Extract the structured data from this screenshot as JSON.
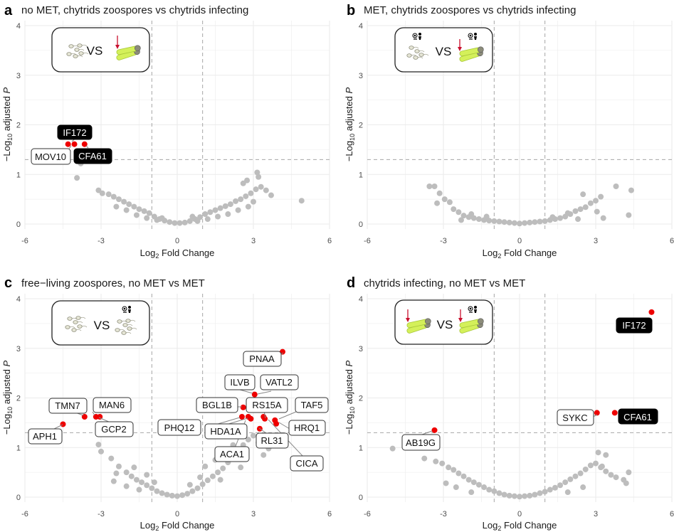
{
  "chart_data": [
    {
      "type": "scatter",
      "panel": "a",
      "title": "no MET, chytrids zoospores vs chytrids infecting",
      "xlabel": "Log2 Fold Change",
      "ylabel": "−Log10 adjusted P",
      "xlim": [
        -6,
        6
      ],
      "ylim": [
        0,
        4
      ],
      "xticks": [
        -6,
        -3,
        0,
        3,
        6
      ],
      "yticks": [
        0,
        1,
        2,
        3,
        4
      ],
      "grid": true,
      "thresholds": {
        "x": [
          -1,
          1
        ],
        "y": 1.3
      },
      "inset": {
        "vs_label": "VS",
        "left": "zoospores",
        "right": "infecting",
        "left_icon": false,
        "right_icon": false
      },
      "highlight_points": [
        {
          "x": -4.3,
          "y": 1.61
        },
        {
          "x": -4.05,
          "y": 1.61
        },
        {
          "x": -3.65,
          "y": 1.61
        }
      ],
      "ns_points": [
        [
          -3.8,
          1.22
        ],
        [
          -3.95,
          0.93
        ],
        [
          -3.1,
          0.68
        ],
        [
          -2.95,
          0.62
        ],
        [
          -2.7,
          0.6
        ],
        [
          -2.5,
          0.55
        ],
        [
          -2.3,
          0.5
        ],
        [
          -2.1,
          0.45
        ],
        [
          -1.9,
          0.4
        ],
        [
          -1.7,
          0.35
        ],
        [
          -1.5,
          0.3
        ],
        [
          -1.3,
          0.26
        ],
        [
          -1.1,
          0.22
        ],
        [
          -0.9,
          0.15
        ],
        [
          -0.7,
          0.1
        ],
        [
          -0.5,
          0.07
        ],
        [
          -0.3,
          0.04
        ],
        [
          -0.1,
          0.02
        ],
        [
          0.1,
          0.02
        ],
        [
          0.3,
          0.03
        ],
        [
          0.5,
          0.06
        ],
        [
          0.7,
          0.1
        ],
        [
          0.9,
          0.14
        ],
        [
          1.1,
          0.2
        ],
        [
          1.3,
          0.24
        ],
        [
          1.5,
          0.28
        ],
        [
          1.7,
          0.32
        ],
        [
          1.9,
          0.36
        ],
        [
          2.1,
          0.4
        ],
        [
          2.3,
          0.46
        ],
        [
          2.5,
          0.5
        ],
        [
          2.7,
          0.56
        ],
        [
          2.9,
          0.62
        ],
        [
          3.1,
          0.7
        ],
        [
          3.3,
          0.75
        ],
        [
          3.5,
          0.68
        ],
        [
          3.7,
          0.58
        ],
        [
          2.6,
          0.82
        ],
        [
          2.75,
          0.88
        ],
        [
          3.2,
          0.95
        ],
        [
          3.15,
          1.04
        ],
        [
          4.9,
          0.47
        ],
        [
          -1.6,
          0.18
        ],
        [
          -1.2,
          0.12
        ],
        [
          -0.8,
          0.08
        ],
        [
          0.8,
          0.06
        ],
        [
          1.2,
          0.1
        ],
        [
          1.6,
          0.15
        ],
        [
          2.0,
          0.2
        ],
        [
          2.4,
          0.28
        ],
        [
          2.8,
          0.35
        ],
        [
          3.0,
          0.45
        ],
        [
          -2.0,
          0.28
        ],
        [
          -2.4,
          0.35
        ],
        [
          -0.6,
          0.12
        ],
        [
          0.6,
          0.15
        ]
      ],
      "labels": [
        {
          "text": "IF172",
          "style": "dark"
        },
        {
          "text": "MOV10",
          "style": "light"
        },
        {
          "text": "CFA61",
          "style": "dark"
        }
      ]
    },
    {
      "type": "scatter",
      "panel": "b",
      "title": "MET, chytrids zoospores vs chytrids infecting",
      "xlabel": "Log2 Fold Change",
      "ylabel": "−Log10 adjusted P",
      "xlim": [
        -6,
        6
      ],
      "ylim": [
        0,
        4
      ],
      "xticks": [
        -6,
        -3,
        0,
        3,
        6
      ],
      "yticks": [
        0,
        1,
        2,
        3,
        4
      ],
      "grid": true,
      "thresholds": {
        "x": [
          -1,
          1
        ],
        "y": 1.3
      },
      "inset": {
        "vs_label": "VS",
        "left": "zoospores",
        "right": "infecting",
        "left_icon": true,
        "right_icon": true
      },
      "highlight_points": [],
      "ns_points": [
        [
          -3.55,
          0.76
        ],
        [
          -3.35,
          0.76
        ],
        [
          -3.15,
          0.62
        ],
        [
          -2.95,
          0.5
        ],
        [
          -2.75,
          0.44
        ],
        [
          -2.6,
          0.3
        ],
        [
          -2.4,
          0.24
        ],
        [
          -2.2,
          0.17
        ],
        [
          -2.0,
          0.14
        ],
        [
          -1.8,
          0.12
        ],
        [
          -1.6,
          0.1
        ],
        [
          -1.4,
          0.08
        ],
        [
          -1.2,
          0.07
        ],
        [
          -1.0,
          0.06
        ],
        [
          -0.8,
          0.05
        ],
        [
          -0.6,
          0.04
        ],
        [
          -0.4,
          0.03
        ],
        [
          -0.2,
          0.02
        ],
        [
          0.0,
          0.01
        ],
        [
          0.2,
          0.02
        ],
        [
          0.4,
          0.03
        ],
        [
          0.6,
          0.04
        ],
        [
          0.8,
          0.05
        ],
        [
          1.0,
          0.06
        ],
        [
          1.2,
          0.08
        ],
        [
          1.4,
          0.1
        ],
        [
          1.6,
          0.12
        ],
        [
          1.8,
          0.15
        ],
        [
          2.0,
          0.2
        ],
        [
          2.2,
          0.26
        ],
        [
          2.4,
          0.3
        ],
        [
          2.6,
          0.34
        ],
        [
          2.8,
          0.42
        ],
        [
          3.0,
          0.47
        ],
        [
          3.2,
          0.55
        ],
        [
          3.05,
          0.25
        ],
        [
          3.3,
          0.12
        ],
        [
          2.5,
          0.6
        ],
        [
          3.8,
          0.76
        ],
        [
          4.4,
          0.68
        ],
        [
          4.3,
          0.18
        ],
        [
          -3.25,
          0.42
        ],
        [
          -1.9,
          0.2
        ],
        [
          -1.3,
          0.15
        ],
        [
          1.3,
          0.14
        ],
        [
          1.9,
          0.22
        ],
        [
          2.3,
          0.1
        ],
        [
          -2.3,
          0.08
        ]
      ],
      "labels": []
    },
    {
      "type": "scatter",
      "panel": "c",
      "title": "free−living zoospores, no MET vs MET",
      "xlabel": "Log2 Fold Change",
      "ylabel": "−Log10 adjusted P",
      "xlim": [
        -6,
        6
      ],
      "ylim": [
        0,
        4
      ],
      "xticks": [
        -6,
        -3,
        0,
        3,
        6
      ],
      "yticks": [
        0,
        1,
        2,
        3,
        4
      ],
      "grid": true,
      "thresholds": {
        "x": [
          -1,
          1
        ],
        "y": 1.3
      },
      "inset": {
        "vs_label": "VS",
        "left": "zoospores",
        "right": "zoospores",
        "left_icon": false,
        "right_icon": true
      },
      "highlight_points": [
        {
          "x": -4.5,
          "y": 1.47
        },
        {
          "x": -3.65,
          "y": 1.62
        },
        {
          "x": -3.2,
          "y": 1.62
        },
        {
          "x": -3.05,
          "y": 1.62
        },
        {
          "x": 2.55,
          "y": 1.62
        },
        {
          "x": 2.6,
          "y": 1.81
        },
        {
          "x": 2.8,
          "y": 1.62
        },
        {
          "x": 2.9,
          "y": 1.58
        },
        {
          "x": 3.05,
          "y": 2.07
        },
        {
          "x": 3.25,
          "y": 1.38
        },
        {
          "x": 3.4,
          "y": 1.62
        },
        {
          "x": 3.45,
          "y": 1.58
        },
        {
          "x": 3.85,
          "y": 1.55
        },
        {
          "x": 3.9,
          "y": 1.48
        },
        {
          "x": 4.15,
          "y": 2.93
        }
      ],
      "ns_points": [
        [
          -3.1,
          1.06
        ],
        [
          -3.0,
          0.92
        ],
        [
          -2.6,
          0.78
        ],
        [
          -2.3,
          0.62
        ],
        [
          -2.0,
          0.5
        ],
        [
          -1.8,
          0.42
        ],
        [
          -1.6,
          0.35
        ],
        [
          -1.4,
          0.3
        ],
        [
          -1.2,
          0.24
        ],
        [
          -1.0,
          0.18
        ],
        [
          -0.8,
          0.12
        ],
        [
          -0.6,
          0.08
        ],
        [
          -0.4,
          0.05
        ],
        [
          -0.2,
          0.03
        ],
        [
          0.0,
          0.02
        ],
        [
          0.2,
          0.04
        ],
        [
          0.4,
          0.07
        ],
        [
          0.6,
          0.12
        ],
        [
          0.8,
          0.18
        ],
        [
          1.0,
          0.26
        ],
        [
          1.2,
          0.34
        ],
        [
          1.4,
          0.42
        ],
        [
          1.6,
          0.5
        ],
        [
          1.8,
          0.58
        ],
        [
          2.0,
          0.7
        ],
        [
          2.2,
          0.82
        ],
        [
          2.4,
          0.95
        ],
        [
          2.6,
          1.05
        ],
        [
          2.8,
          1.16
        ],
        [
          3.0,
          1.24
        ],
        [
          3.2,
          1.1
        ],
        [
          3.4,
          0.85
        ],
        [
          3.6,
          0.98
        ],
        [
          1.5,
          0.75
        ],
        [
          1.1,
          0.62
        ],
        [
          -2.0,
          0.22
        ],
        [
          -1.5,
          0.15
        ],
        [
          -2.5,
          0.32
        ],
        [
          -1.2,
          0.45
        ],
        [
          2.2,
          1.05
        ],
        [
          1.9,
          0.92
        ],
        [
          -0.9,
          0.3
        ],
        [
          0.9,
          0.4
        ],
        [
          1.7,
          0.35
        ],
        [
          2.5,
          0.6
        ],
        [
          -2.4,
          0.48
        ],
        [
          -1.7,
          0.6
        ],
        [
          0.5,
          0.25
        ]
      ],
      "labels": [
        {
          "text": "TMN7",
          "style": "light"
        },
        {
          "text": "MAN6",
          "style": "light"
        },
        {
          "text": "APH1",
          "style": "light"
        },
        {
          "text": "GCP2",
          "style": "light"
        },
        {
          "text": "PNAA",
          "style": "light"
        },
        {
          "text": "ILVB",
          "style": "light"
        },
        {
          "text": "VATL2",
          "style": "light"
        },
        {
          "text": "BGL1B",
          "style": "light"
        },
        {
          "text": "RS15A",
          "style": "light"
        },
        {
          "text": "TAF5",
          "style": "light"
        },
        {
          "text": "PHQ12",
          "style": "light"
        },
        {
          "text": "HDA1A",
          "style": "light"
        },
        {
          "text": "HRQ1",
          "style": "light"
        },
        {
          "text": "RL31",
          "style": "light"
        },
        {
          "text": "ACA1",
          "style": "light"
        },
        {
          "text": "CICA",
          "style": "light"
        }
      ]
    },
    {
      "type": "scatter",
      "panel": "d",
      "title": "chytrids infecting, no MET vs MET",
      "xlabel": "Log2 Fold Change",
      "ylabel": "−Log10 adjusted P",
      "xlim": [
        -6,
        6
      ],
      "ylim": [
        0,
        4
      ],
      "xticks": [
        -6,
        -3,
        0,
        3,
        6
      ],
      "yticks": [
        0,
        1,
        2,
        3,
        4
      ],
      "grid": true,
      "thresholds": {
        "x": [
          -1,
          1
        ],
        "y": 1.3
      },
      "inset": {
        "vs_label": "VS",
        "left": "infecting",
        "right": "infecting",
        "left_icon": false,
        "right_icon": true
      },
      "highlight_points": [
        {
          "x": -3.35,
          "y": 1.35
        },
        {
          "x": 3.05,
          "y": 1.7
        },
        {
          "x": 3.75,
          "y": 1.7
        },
        {
          "x": 5.2,
          "y": 3.73
        }
      ],
      "ns_points": [
        [
          -5.0,
          0.98
        ],
        [
          -3.75,
          0.78
        ],
        [
          -3.3,
          0.72
        ],
        [
          -3.05,
          0.68
        ],
        [
          -2.8,
          0.6
        ],
        [
          -2.6,
          0.55
        ],
        [
          -2.4,
          0.48
        ],
        [
          -2.2,
          0.42
        ],
        [
          -2.0,
          0.35
        ],
        [
          -1.8,
          0.3
        ],
        [
          -1.6,
          0.25
        ],
        [
          -1.4,
          0.2
        ],
        [
          -1.2,
          0.15
        ],
        [
          -1.0,
          0.12
        ],
        [
          -0.8,
          0.08
        ],
        [
          -0.6,
          0.05
        ],
        [
          -0.4,
          0.03
        ],
        [
          -0.2,
          0.02
        ],
        [
          0.0,
          0.01
        ],
        [
          0.2,
          0.02
        ],
        [
          0.4,
          0.03
        ],
        [
          0.6,
          0.05
        ],
        [
          0.8,
          0.08
        ],
        [
          1.0,
          0.11
        ],
        [
          1.2,
          0.15
        ],
        [
          1.4,
          0.19
        ],
        [
          1.6,
          0.24
        ],
        [
          1.8,
          0.3
        ],
        [
          2.0,
          0.36
        ],
        [
          2.2,
          0.42
        ],
        [
          2.4,
          0.48
        ],
        [
          2.6,
          0.56
        ],
        [
          2.8,
          0.64
        ],
        [
          3.0,
          0.68
        ],
        [
          3.2,
          0.6
        ],
        [
          3.4,
          0.52
        ],
        [
          3.6,
          0.45
        ],
        [
          3.8,
          0.4
        ],
        [
          4.1,
          0.35
        ],
        [
          3.1,
          0.9
        ],
        [
          3.4,
          0.85
        ],
        [
          3.25,
          0.62
        ],
        [
          -2.9,
          0.28
        ],
        [
          -2.5,
          0.2
        ],
        [
          -1.9,
          0.1
        ],
        [
          1.9,
          0.1
        ],
        [
          2.5,
          0.2
        ],
        [
          4.3,
          0.5
        ],
        [
          4.2,
          0.28
        ]
      ],
      "labels": [
        {
          "text": "AB19G",
          "style": "light"
        },
        {
          "text": "SYKC",
          "style": "light"
        },
        {
          "text": "CFA61",
          "style": "dark"
        },
        {
          "text": "IF172",
          "style": "dark"
        }
      ]
    }
  ]
}
